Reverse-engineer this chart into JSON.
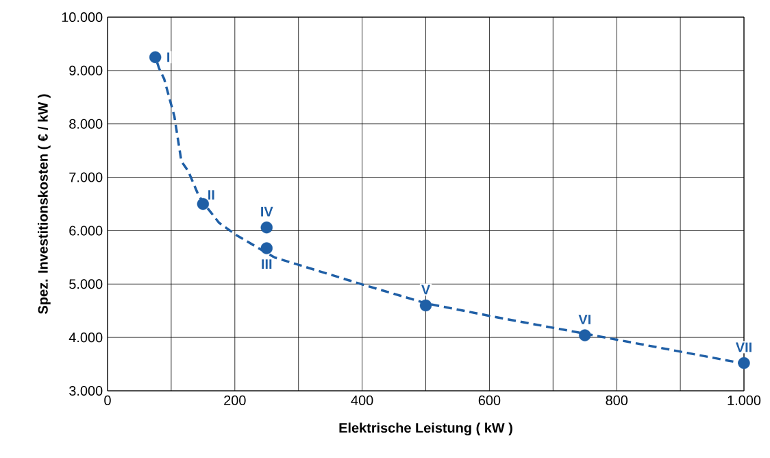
{
  "chart_data": {
    "type": "scatter",
    "xlabel": "Elektrische Leistung  ( kW )",
    "ylabel": "Spez. Investitionskosten  ( € / kW )",
    "xlim": [
      0,
      1000
    ],
    "ylim": [
      3000,
      10000
    ],
    "xticks": [
      {
        "value": 0,
        "label": "0"
      },
      {
        "value": 100,
        "label": null
      },
      {
        "value": 200,
        "label": "200"
      },
      {
        "value": 300,
        "label": null
      },
      {
        "value": 400,
        "label": "400"
      },
      {
        "value": 500,
        "label": null
      },
      {
        "value": 600,
        "label": "600"
      },
      {
        "value": 700,
        "label": null
      },
      {
        "value": 800,
        "label": "800"
      },
      {
        "value": 900,
        "label": null
      },
      {
        "value": 1000,
        "label": "1.000"
      }
    ],
    "yticks": [
      {
        "value": 3000,
        "label": "3.000"
      },
      {
        "value": 4000,
        "label": "4.000"
      },
      {
        "value": 5000,
        "label": "5.000"
      },
      {
        "value": 6000,
        "label": "6.000"
      },
      {
        "value": 7000,
        "label": "7.000"
      },
      {
        "value": 8000,
        "label": "8.000"
      },
      {
        "value": 9000,
        "label": "9.000"
      },
      {
        "value": 10000,
        "label": "10.000"
      }
    ],
    "grid": true,
    "series": [
      {
        "color": "#1f5fa6",
        "marker": "circle",
        "x": [
          75,
          150,
          250,
          250,
          500,
          750,
          1000
        ],
        "values": [
          9250,
          6500,
          5670,
          6060,
          4600,
          4040,
          3520
        ]
      },
      {
        "type": "line",
        "color": "#1f5fa6",
        "marker": "none",
        "line_style": "dashed",
        "x": [
          78,
          81,
          89,
          105,
          116,
          127,
          143,
          154,
          175,
          202,
          262,
          401,
          500,
          606,
          750,
          1000
        ],
        "values": [
          9150,
          9040,
          8840,
          8140,
          7300,
          7110,
          6660,
          6470,
          6150,
          5920,
          5500,
          4990,
          4640,
          4390,
          4070,
          3510
        ]
      }
    ],
    "annotations": [
      {
        "text": "I",
        "x": 75,
        "y": 9250
      },
      {
        "text": "II",
        "x": 150,
        "y": 6500
      },
      {
        "text": "III",
        "x": 250,
        "y": 5670
      },
      {
        "text": "IV",
        "x": 250,
        "y": 6060
      },
      {
        "text": "V",
        "x": 500,
        "y": 4600
      },
      {
        "text": "VI",
        "x": 750,
        "y": 4040
      },
      {
        "text": "VII",
        "x": 1000,
        "y": 3520
      }
    ]
  }
}
